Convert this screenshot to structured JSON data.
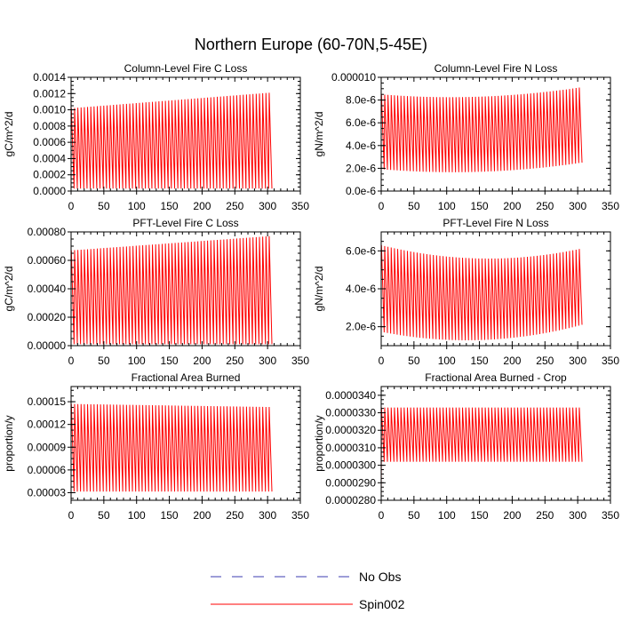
{
  "title": "Northern Europe (60-70N,5-45E)",
  "colors": {
    "spin002": "#ff0000",
    "no_obs": "#3b3bb0",
    "axis": "#000000"
  },
  "legend": {
    "entries": [
      {
        "label": "No Obs",
        "style": "dashed",
        "color": "#3b3bb0"
      },
      {
        "label": "Spin002",
        "style": "solid",
        "color": "#ff0000"
      }
    ]
  },
  "chart_data": [
    {
      "type": "line",
      "title": "Column-Level Fire C Loss",
      "xlabel": "",
      "ylabel": "gC/m^2/d",
      "xlim": [
        0,
        350
      ],
      "ylim": [
        0,
        0.0014
      ],
      "xticks": [
        0,
        50,
        100,
        150,
        200,
        250,
        300,
        350
      ],
      "xtick_labels": [
        "0",
        "50",
        "100",
        "150",
        "200",
        "250",
        "300",
        "350"
      ],
      "yticks": [
        0,
        0.0002,
        0.0004,
        0.0006,
        0.0008,
        0.001,
        0.0012,
        0.0014
      ],
      "ytick_labels": [
        "0.0000",
        "0.0002",
        "0.0004",
        "0.0006",
        "0.0008",
        "0.0010",
        "0.0012",
        "0.0014"
      ],
      "series": [
        {
          "name": "Spin002",
          "color": "#ff0000",
          "x_range": [
            0,
            307
          ],
          "cycles": 62,
          "peak_start": 0.00102,
          "peak_end": 0.00121,
          "trough_start": 3e-05,
          "trough_end": 3e-05
        }
      ]
    },
    {
      "type": "line",
      "title": "Column-Level Fire N Loss",
      "xlabel": "",
      "ylabel": "gN/m^2/d",
      "xlim": [
        0,
        350
      ],
      "ylim": [
        0,
        1e-05
      ],
      "xticks": [
        0,
        50,
        100,
        150,
        200,
        250,
        300,
        350
      ],
      "xtick_labels": [
        "0",
        "50",
        "100",
        "150",
        "200",
        "250",
        "300",
        "350"
      ],
      "yticks": [
        0,
        2e-06,
        4e-06,
        6e-06,
        8e-06,
        1e-05
      ],
      "ytick_labels": [
        "0.0e-6",
        "2.0e-6",
        "4.0e-6",
        "6.0e-6",
        "8.0e-6",
        "0.000010"
      ],
      "series": [
        {
          "name": "Spin002",
          "color": "#ff0000",
          "x_range": [
            0,
            307
          ],
          "cycles": 62,
          "peak_start": 8.5e-06,
          "peak_mid": 8.3e-06,
          "peak_end": 9.1e-06,
          "trough_start": 1.9e-06,
          "trough_mid": 1.7e-06,
          "trough_end": 2.5e-06
        }
      ]
    },
    {
      "type": "line",
      "title": "PFT-Level Fire C Loss",
      "xlabel": "",
      "ylabel": "gC/m^2/d",
      "xlim": [
        0,
        350
      ],
      "ylim": [
        0,
        0.0008
      ],
      "xticks": [
        0,
        50,
        100,
        150,
        200,
        250,
        300,
        350
      ],
      "xtick_labels": [
        "0",
        "50",
        "100",
        "150",
        "200",
        "250",
        "300",
        "350"
      ],
      "yticks": [
        0,
        0.0002,
        0.0004,
        0.0006,
        0.0008
      ],
      "ytick_labels": [
        "0.00000",
        "0.00020",
        "0.00040",
        "0.00060",
        "0.00080"
      ],
      "series": [
        {
          "name": "Spin002",
          "color": "#ff0000",
          "x_range": [
            0,
            307
          ],
          "cycles": 62,
          "peak_start": 0.00067,
          "peak_end": 0.00077,
          "trough_start": 1e-05,
          "trough_end": 1e-05
        }
      ]
    },
    {
      "type": "line",
      "title": "PFT-Level Fire N Loss",
      "xlabel": "",
      "ylabel": "gN/m^2/d",
      "xlim": [
        0,
        350
      ],
      "ylim": [
        1e-06,
        7e-06
      ],
      "xticks": [
        0,
        50,
        100,
        150,
        200,
        250,
        300,
        350
      ],
      "xtick_labels": [
        "0",
        "50",
        "100",
        "150",
        "200",
        "250",
        "300",
        "350"
      ],
      "yticks": [
        2e-06,
        4e-06,
        6e-06
      ],
      "ytick_labels": [
        "2.0e-6",
        "4.0e-6",
        "6.0e-6"
      ],
      "series": [
        {
          "name": "Spin002",
          "color": "#ff0000",
          "x_range": [
            0,
            307
          ],
          "cycles": 62,
          "peak_start": 6.3e-06,
          "peak_mid": 5.6e-06,
          "peak_end": 6.1e-06,
          "trough_start": 1.7e-06,
          "trough_mid": 1.3e-06,
          "trough_end": 2.1e-06
        }
      ]
    },
    {
      "type": "line",
      "title": "Fractional Area Burned",
      "xlabel": "",
      "ylabel": "proportion/y",
      "xlim": [
        0,
        350
      ],
      "ylim": [
        2e-05,
        0.00017
      ],
      "xticks": [
        0,
        50,
        100,
        150,
        200,
        250,
        300,
        350
      ],
      "xtick_labels": [
        "0",
        "50",
        "100",
        "150",
        "200",
        "250",
        "300",
        "350"
      ],
      "yticks": [
        3e-05,
        6e-05,
        9e-05,
        0.00012,
        0.00015
      ],
      "ytick_labels": [
        "0.00003",
        "0.00006",
        "0.00009",
        "0.00012",
        "0.00015"
      ],
      "series": [
        {
          "name": "Spin002",
          "color": "#ff0000",
          "x_range": [
            0,
            307
          ],
          "cycles": 62,
          "peak_start": 0.000147,
          "peak_end": 0.000143,
          "trough_start": 3.15e-05,
          "trough_end": 3.15e-05
        }
      ]
    },
    {
      "type": "line",
      "title": "Fractional Area Burned - Crop",
      "xlabel": "",
      "ylabel": "proportion/y",
      "xlim": [
        0,
        350
      ],
      "ylim": [
        2.8e-05,
        3.45e-05
      ],
      "xticks": [
        0,
        50,
        100,
        150,
        200,
        250,
        300,
        350
      ],
      "xtick_labels": [
        "0",
        "50",
        "100",
        "150",
        "200",
        "250",
        "300",
        "350"
      ],
      "yticks": [
        2.8e-05,
        2.9e-05,
        3e-05,
        3.1e-05,
        3.2e-05,
        3.3e-05,
        3.4e-05
      ],
      "ytick_labels": [
        "0.0000280",
        "0.0000290",
        "0.0000300",
        "0.0000310",
        "0.0000320",
        "0.0000330",
        "0.0000340"
      ],
      "series": [
        {
          "name": "Spin002",
          "color": "#ff0000",
          "x_range": [
            0,
            307
          ],
          "cycles": 62,
          "peak_start": 3.33e-05,
          "peak_end": 3.33e-05,
          "trough_start": 3.02e-05,
          "trough_end": 3.02e-05,
          "initial_value": 2.81e-05
        }
      ]
    }
  ]
}
